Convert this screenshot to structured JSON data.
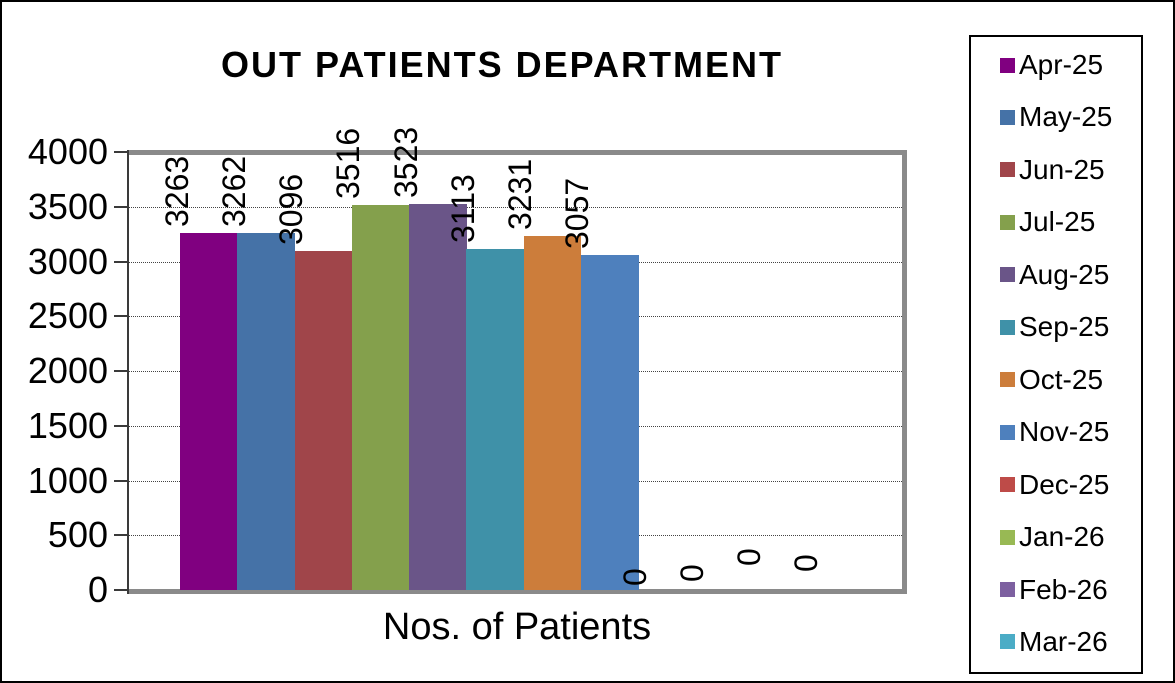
{
  "chart_data": {
    "type": "bar",
    "title": "OUT PATIENTS DEPARTMENT",
    "xlabel": "Nos. of Patients",
    "ylabel": "",
    "ylim": [
      0,
      4000
    ],
    "ytick_interval": 500,
    "yticks": [
      0,
      500,
      1000,
      1500,
      2000,
      2500,
      3000,
      3500,
      4000
    ],
    "gridlines": "horizontal-dotted",
    "legend_position": "right",
    "data_labels": "rotated-90-outside-end",
    "categories": [
      "Nos. of Patients"
    ],
    "series": [
      {
        "name": "Apr-25",
        "value": 3263,
        "color": "#800080"
      },
      {
        "name": "May-25",
        "value": 3262,
        "color": "#4572A7"
      },
      {
        "name": "Jun-25",
        "value": 3096,
        "color": "#A0454A"
      },
      {
        "name": "Jul-25",
        "value": 3516,
        "color": "#84A04C"
      },
      {
        "name": "Aug-25",
        "value": 3523,
        "color": "#6A5588"
      },
      {
        "name": "Sep-25",
        "value": 3113,
        "color": "#3F91A8"
      },
      {
        "name": "Oct-25",
        "value": 3231,
        "color": "#CC7D3B"
      },
      {
        "name": "Nov-25",
        "value": 3057,
        "color": "#4E80BD"
      },
      {
        "name": "Dec-25",
        "value": 0,
        "color": "#BE4B48"
      },
      {
        "name": "Jan-26",
        "value": 0,
        "color": "#98B954"
      },
      {
        "name": "Feb-26",
        "value": 0,
        "color": "#7D60A0"
      },
      {
        "name": "Mar-26",
        "value": 0,
        "color": "#4BACC6"
      }
    ]
  }
}
